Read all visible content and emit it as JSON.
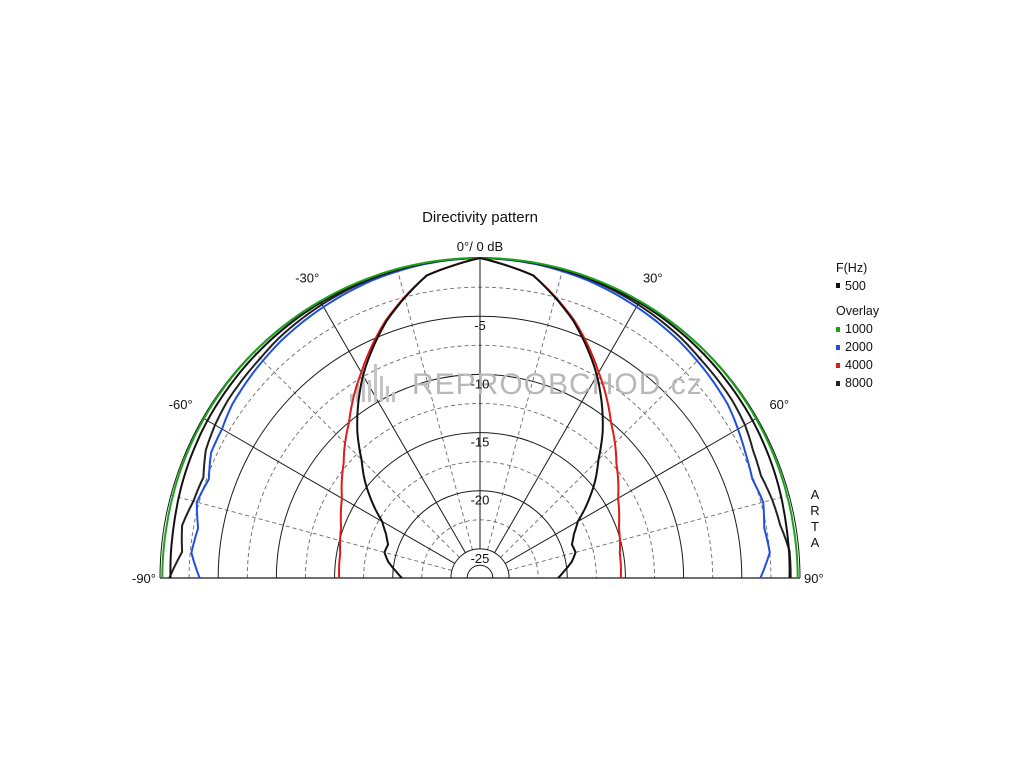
{
  "chart_data": {
    "type": "polar-line",
    "title": "Directivity pattern",
    "top_label": "0°/ 0 dB",
    "angle_labels": [
      {
        "angle": -90,
        "text": "-90°"
      },
      {
        "angle": -60,
        "text": "-60°"
      },
      {
        "angle": -30,
        "text": "-30°"
      },
      {
        "angle": 30,
        "text": "30°"
      },
      {
        "angle": 60,
        "text": "60°"
      },
      {
        "angle": 90,
        "text": "90°"
      }
    ],
    "radial_labels": [
      {
        "db": -5,
        "text": "-5"
      },
      {
        "db": -10,
        "text": "-10"
      },
      {
        "db": -15,
        "text": "-15"
      },
      {
        "db": -20,
        "text": "-20"
      },
      {
        "db": -25,
        "text": "-25"
      }
    ],
    "angle_range": [
      -90,
      90
    ],
    "db_range": [
      -27.5,
      0
    ],
    "major_rings_db": [
      0,
      -5,
      -10,
      -15,
      -20,
      -25
    ],
    "minor_rings_db": [
      -2.5,
      -7.5,
      -12.5,
      -17.5,
      -22.5
    ],
    "major_spokes_deg": [
      -90,
      -60,
      -30,
      0,
      30,
      60,
      90
    ],
    "minor_spokes_deg": [
      -75,
      -45,
      -15,
      15,
      45,
      75
    ],
    "legend": {
      "header": "F(Hz)",
      "current": {
        "name": "500",
        "color": "#111111"
      },
      "overlay_header": "Overlay",
      "overlays": [
        {
          "name": "1000",
          "color": "#1aa31a"
        },
        {
          "name": "2000",
          "color": "#1f4fe0"
        },
        {
          "name": "4000",
          "color": "#e01a1a"
        },
        {
          "name": "8000",
          "color": "#222222"
        }
      ]
    },
    "series": [
      {
        "name": "500",
        "color": "#111111",
        "angles": [
          -90,
          -80,
          -70,
          -60,
          -45,
          -30,
          -15,
          0,
          15,
          30,
          45,
          60,
          70,
          80,
          90
        ],
        "db": [
          -0.9,
          -0.8,
          -0.6,
          -0.45,
          -0.3,
          -0.15,
          -0.05,
          0,
          -0.05,
          -0.15,
          -0.3,
          -0.45,
          -0.6,
          -0.8,
          -0.9
        ]
      },
      {
        "name": "1000",
        "color": "#1aa31a",
        "angles": [
          -90,
          -80,
          -70,
          -60,
          -45,
          -30,
          -15,
          0,
          15,
          30,
          45,
          60,
          70,
          80,
          90
        ],
        "db": [
          -0.2,
          -0.2,
          -0.15,
          -0.1,
          -0.05,
          -0.03,
          0,
          0,
          0,
          -0.03,
          -0.05,
          -0.1,
          -0.15,
          -0.2,
          -0.2
        ]
      },
      {
        "name": "2000",
        "color": "#1f4fe0",
        "angles": [
          -90,
          -85,
          -80,
          -75,
          -70,
          -65,
          -60,
          -55,
          -50,
          -45,
          -40,
          -30,
          -20,
          -10,
          0,
          10,
          20,
          30,
          40,
          45,
          50,
          55,
          60,
          65,
          70,
          75,
          80,
          85,
          90
        ],
        "db": [
          -3.4,
          -2.6,
          -2.9,
          -2.3,
          -2.7,
          -2.0,
          -1.9,
          -1.5,
          -1.3,
          -1.1,
          -0.9,
          -0.6,
          -0.3,
          -0.1,
          0,
          -0.1,
          -0.3,
          -0.6,
          -0.9,
          -1.1,
          -1.3,
          -1.5,
          -1.9,
          -2.3,
          -2.6,
          -2.3,
          -2.7,
          -2.5,
          -3.4
        ]
      },
      {
        "name": "4000",
        "color": "#e01a1a",
        "angles": [
          -90,
          -80,
          -70,
          -60,
          -50,
          -40,
          -30,
          -20,
          -10,
          0,
          10,
          20,
          30,
          40,
          50,
          60,
          70,
          80,
          90
        ],
        "db": [
          -15.4,
          -15.3,
          -14.8,
          -13.8,
          -12.2,
          -10.0,
          -7.1,
          -3.9,
          -1.1,
          0,
          -1.1,
          -3.9,
          -7.1,
          -10.0,
          -12.2,
          -13.8,
          -14.8,
          -15.3,
          -15.4
        ]
      },
      {
        "name": "8000",
        "color": "#222222",
        "angles": [
          -90,
          -85,
          -80,
          -75,
          -70,
          -65,
          -60,
          -55,
          -50,
          -45,
          -40,
          -30,
          -20,
          -10,
          0,
          10,
          20,
          30,
          40,
          45,
          50,
          55,
          60,
          65,
          70,
          75,
          80,
          85,
          90
        ],
        "db": [
          -0.8,
          -1.8,
          -1.5,
          -2.0,
          -2.2,
          -1.5,
          -1.2,
          -1.0,
          -0.9,
          -0.8,
          -0.6,
          -0.35,
          -0.15,
          -0.05,
          0,
          -0.05,
          -0.15,
          -0.35,
          -0.6,
          -0.8,
          -0.9,
          -1.0,
          -1.2,
          -1.6,
          -1.8,
          -1.5,
          -1.3,
          -0.8,
          -0.8
        ]
      }
    ],
    "narrow_series": {
      "name": "narrow",
      "color": "#111111",
      "angles": [
        -90,
        -85,
        -80,
        -75,
        -70,
        -65,
        -60,
        -55,
        -50,
        -45,
        -40,
        -30,
        -20,
        -10,
        0,
        10,
        20,
        30,
        40,
        45,
        50,
        55,
        60,
        65,
        70,
        75,
        80,
        85,
        90
      ],
      "db": [
        -20.8,
        -20.2,
        -19.5,
        -19.0,
        -19.1,
        -18.6,
        -17.8,
        -16.2,
        -14.6,
        -13.1,
        -11.1,
        -7.4,
        -4.0,
        -1.1,
        0,
        -1.1,
        -4.0,
        -7.4,
        -11.1,
        -13.1,
        -14.6,
        -16.2,
        -17.8,
        -18.6,
        -19.1,
        -19.0,
        -19.5,
        -20.2,
        -20.8
      ]
    }
  },
  "side_label": "ARTA",
  "watermark": "REPROOBCHOD.cz"
}
